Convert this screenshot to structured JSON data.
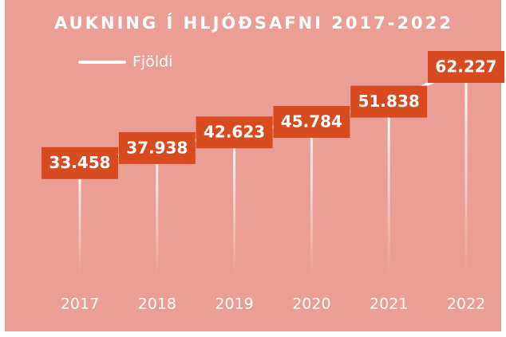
{
  "chart_data": {
    "type": "line",
    "title": "AUKNING Í HLJÓÐSAFNI 2017-2022",
    "categories": [
      "2017",
      "2018",
      "2019",
      "2020",
      "2021",
      "2022"
    ],
    "series": [
      {
        "name": "Fjöldi",
        "color": "#ffffff",
        "values": [
          33458,
          37938,
          42623,
          45784,
          51838,
          62227
        ],
        "value_labels": [
          "33.458",
          "37.938",
          "42.623",
          "45.784",
          "51.838",
          "62.227"
        ]
      }
    ],
    "label_color": "#d84b20",
    "ylim": [
      0,
      72000
    ]
  }
}
